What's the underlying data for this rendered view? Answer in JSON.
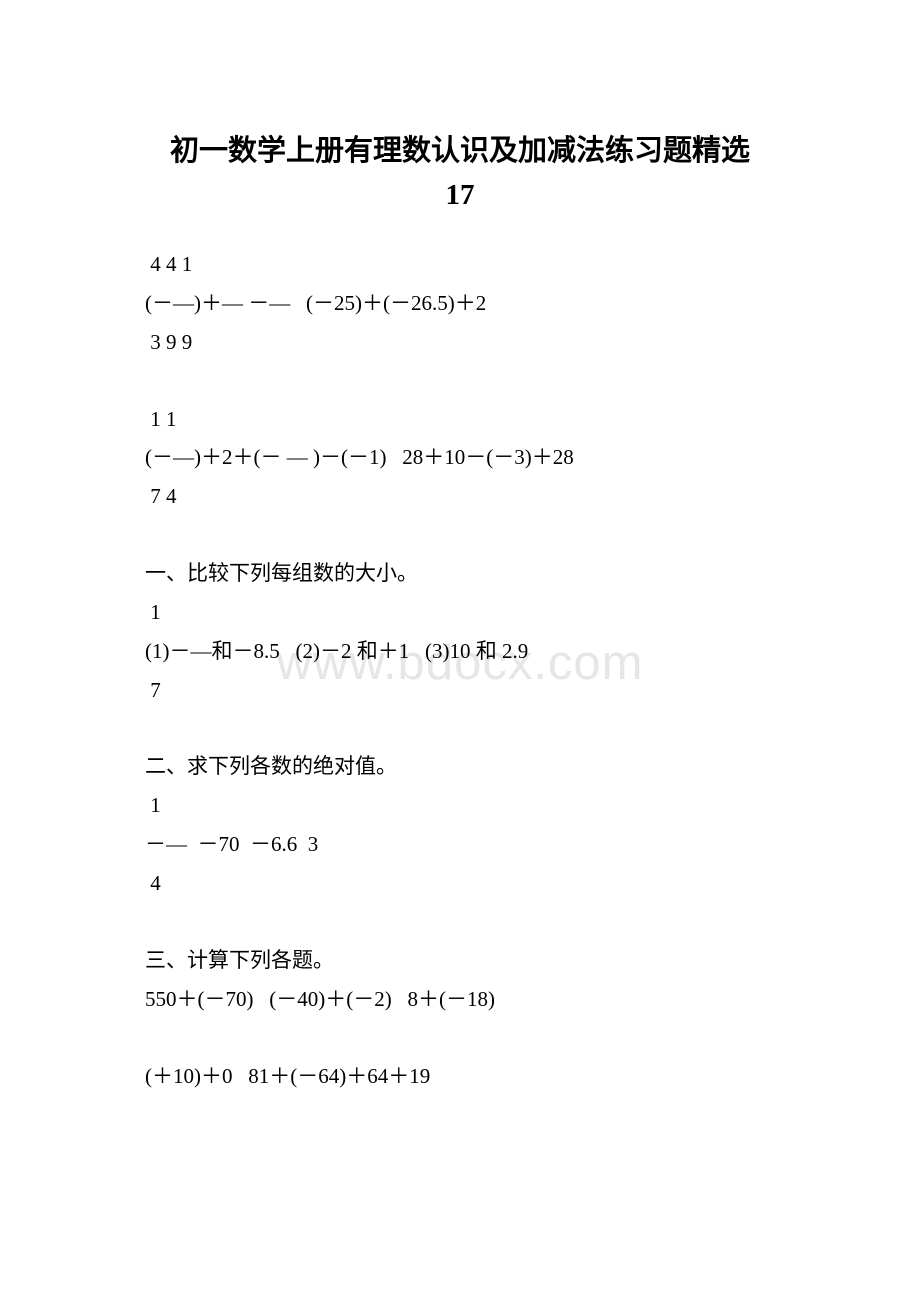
{
  "title_line1": "初一数学上册有理数认识及加减法练习题精选",
  "title_line2": "17",
  "watermark": "www.bdocx.com",
  "blocks": [
    {
      "lines": [
        " 4 4 1",
        "(－—)＋— －—   (－25)＋(－26.5)＋2",
        " 3 9 9"
      ]
    },
    {
      "lines": [
        " 1 1",
        "(－—)＋2＋(－ — )－(－1)   28＋10－(－3)＋28",
        " 7 4"
      ]
    },
    {
      "lines": [
        "一、比较下列每组数的大小。",
        " 1",
        "(1)－—和－8.5   (2)－2 和＋1   (3)10 和 2.9",
        " 7"
      ]
    },
    {
      "lines": [
        "二、求下列各数的绝对值。",
        " 1",
        "－—  －70  －6.6  3",
        " 4"
      ]
    },
    {
      "lines": [
        "三、计算下列各题。",
        "550＋(－70)   (－40)＋(－2)   8＋(－18)"
      ]
    },
    {
      "lines": [
        "(＋10)＋0   81＋(－64)＋64＋19"
      ]
    }
  ],
  "colors": {
    "background": "#ffffff",
    "text": "#000000",
    "watermark": "#e6e6e6"
  },
  "typography": {
    "title_fontsize": 29,
    "body_fontsize": 21,
    "watermark_fontsize": 49
  }
}
